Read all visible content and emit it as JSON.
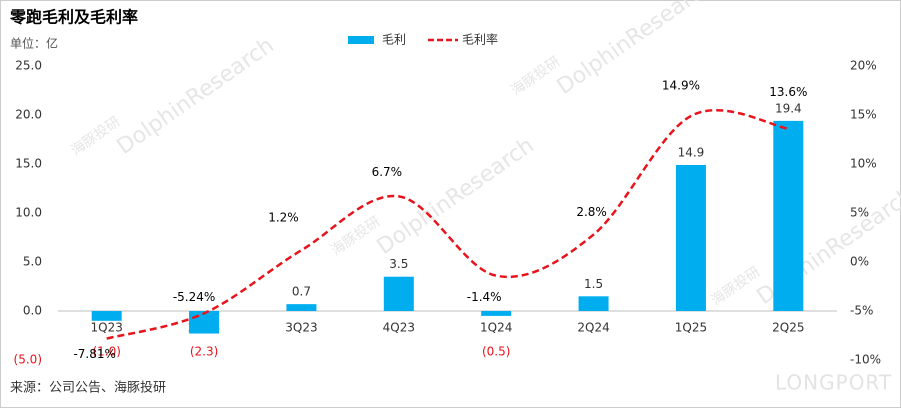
{
  "chart_data": {
    "type": "bar-line",
    "title": "零跑毛利及毛利率",
    "unit": "单位：亿",
    "source": "来源：公司公告、海豚投研",
    "watermarks": [
      "海豚投研",
      "DolphinResearch",
      "LONGPORT"
    ],
    "categories": [
      "1Q23",
      "2Q23",
      "3Q23",
      "4Q23",
      "1Q24",
      "2Q24",
      "1Q25",
      "2Q25"
    ],
    "series": [
      {
        "name": "毛利",
        "type": "bar",
        "color": "#00aeef",
        "values": [
          -1.0,
          -2.3,
          0.7,
          3.5,
          -0.5,
          1.5,
          14.9,
          19.4
        ],
        "value_labels": [
          "(1.0)",
          "(2.3)",
          "0.7",
          "3.5",
          "(0.5)",
          "1.5",
          "14.9",
          "19.4"
        ]
      },
      {
        "name": "毛利率",
        "type": "line",
        "axis": "y2",
        "color": "#e8141c",
        "values": [
          -7.81,
          -5.24,
          1.2,
          6.7,
          -1.4,
          2.8,
          14.9,
          13.6
        ],
        "value_labels": [
          "-7.81%",
          "-5.24%",
          "1.2%",
          "6.7%",
          "-1.4%",
          "2.8%",
          "14.9%",
          "13.6%"
        ]
      }
    ],
    "ylim": [
      -5,
      25
    ],
    "yticks": [
      {
        "value": -5,
        "label": "(5.0)"
      },
      {
        "value": 0,
        "label": "0.0"
      },
      {
        "value": 5,
        "label": "5.0"
      },
      {
        "value": 10,
        "label": "10.0"
      },
      {
        "value": 15,
        "label": "15.0"
      },
      {
        "value": 20,
        "label": "20.0"
      },
      {
        "value": 25,
        "label": "25.0"
      }
    ],
    "y2lim": [
      -10,
      20
    ],
    "y2ticks": [
      {
        "value": -10,
        "label": "-10%"
      },
      {
        "value": -5,
        "label": "-5%"
      },
      {
        "value": 0,
        "label": "0%"
      },
      {
        "value": 5,
        "label": "5%"
      },
      {
        "value": 10,
        "label": "10%"
      },
      {
        "value": 15,
        "label": "15%"
      },
      {
        "value": 20,
        "label": "20%"
      }
    ],
    "legend": "top"
  }
}
